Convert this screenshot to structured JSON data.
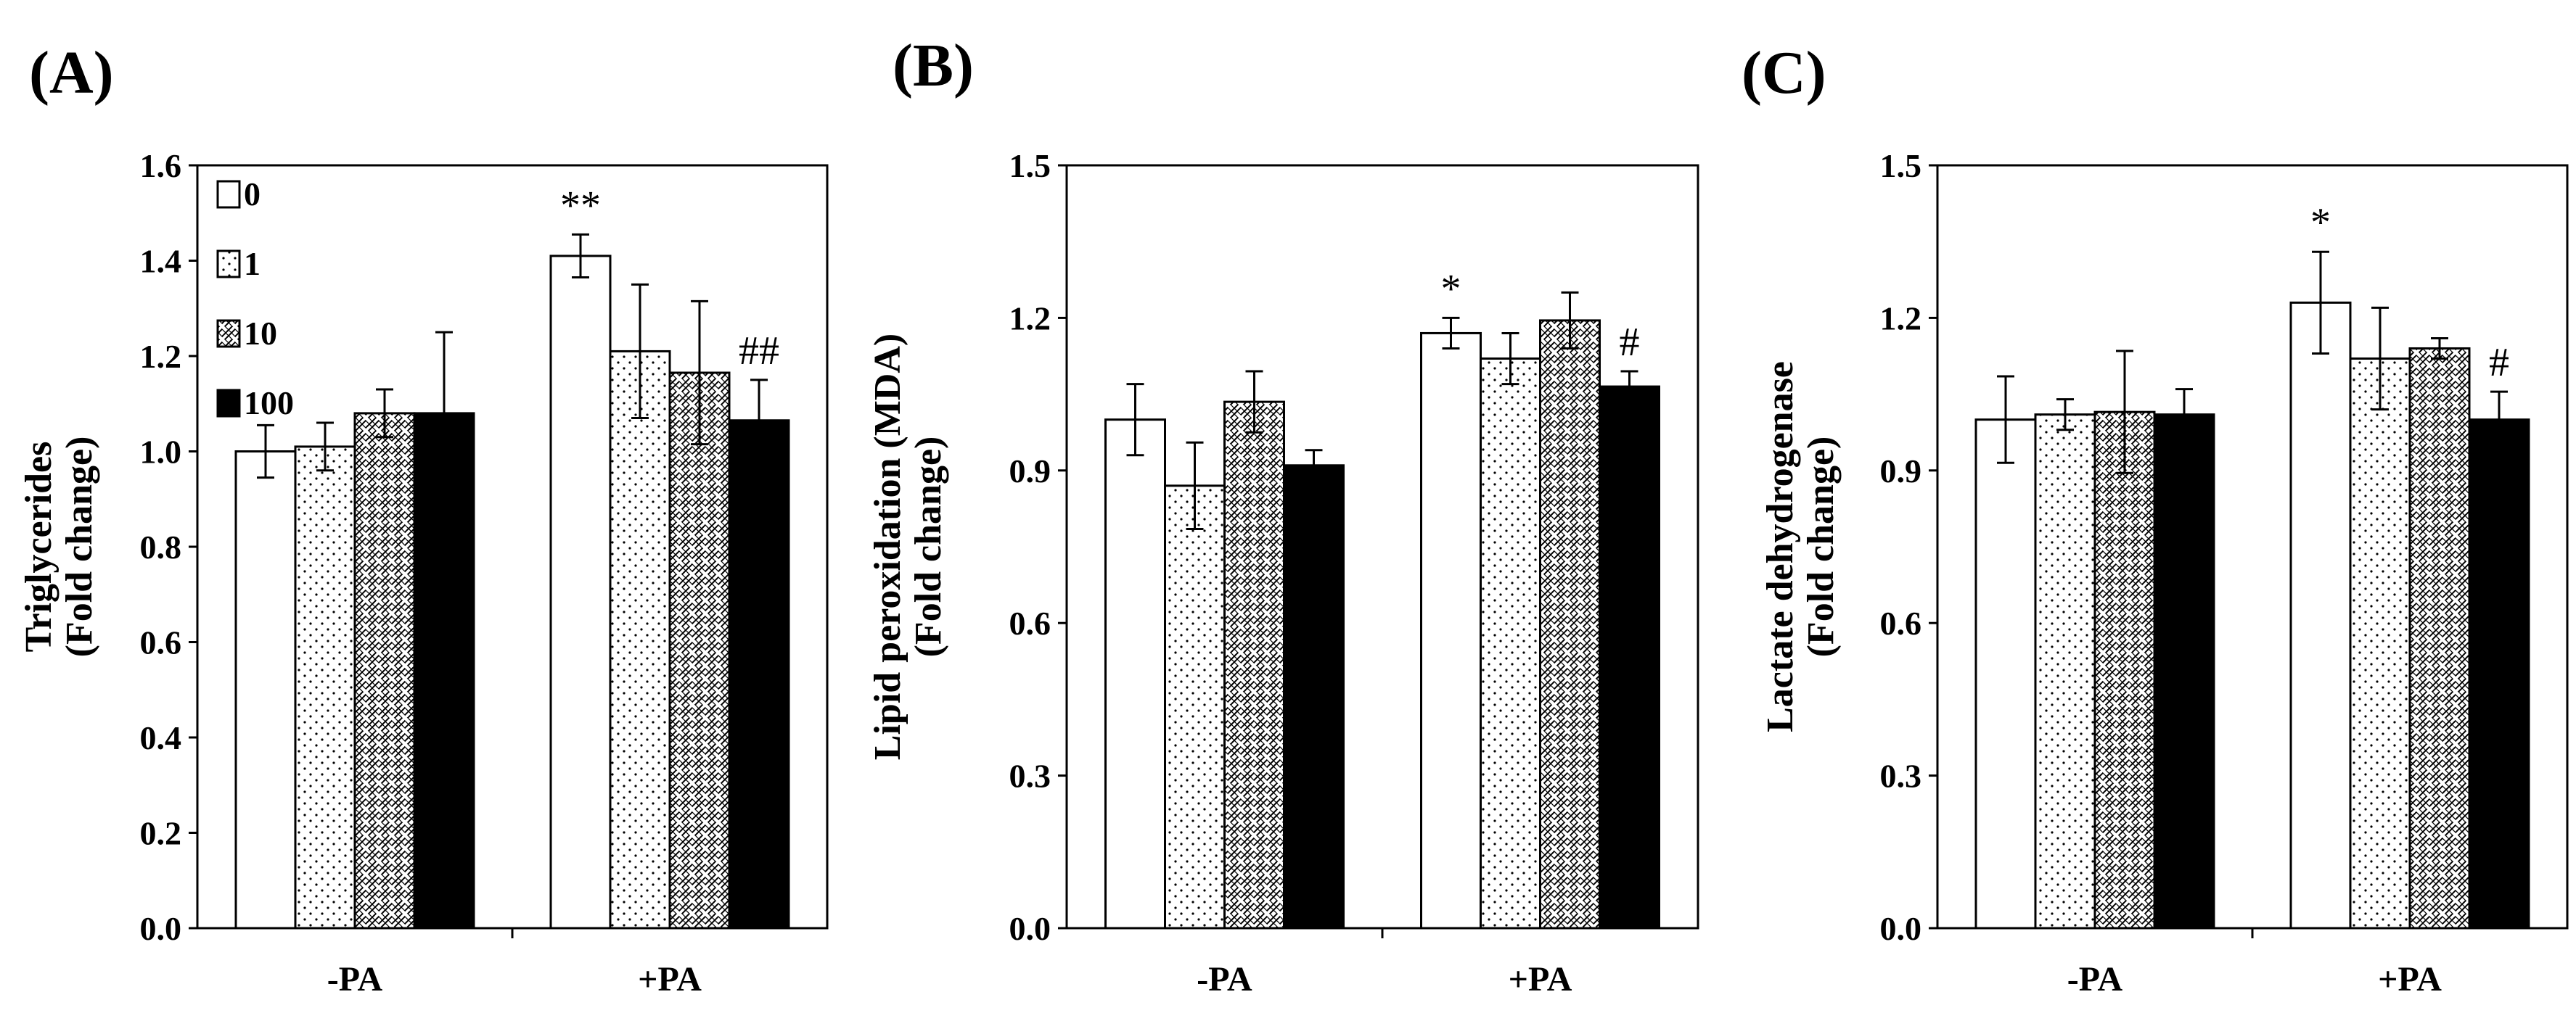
{
  "figure": {
    "series_names": [
      "0",
      "1",
      "10",
      "100"
    ],
    "legend": {
      "placement": "top-left",
      "entries": [
        "0",
        "1",
        "10",
        "100"
      ]
    }
  },
  "chart_data": [
    {
      "type": "bar",
      "panel_label": "(A)",
      "ylabel": [
        "Triglycerides",
        "(Fold change)"
      ],
      "categories": [
        "-PA",
        "+PA"
      ],
      "ylim": [
        0.0,
        1.6
      ],
      "yticks": [
        "0.0",
        "0.2",
        "0.4",
        "0.6",
        "0.8",
        "1.0",
        "1.2",
        "1.4",
        "1.6"
      ],
      "series": [
        {
          "name": "0",
          "values": [
            1.0,
            1.41
          ],
          "errors": [
            0.055,
            0.045
          ]
        },
        {
          "name": "1",
          "values": [
            1.01,
            1.21
          ],
          "errors": [
            0.05,
            0.14
          ]
        },
        {
          "name": "10",
          "values": [
            1.08,
            1.165
          ],
          "errors": [
            0.05,
            0.15
          ]
        },
        {
          "name": "100",
          "values": [
            1.08,
            1.065
          ],
          "errors": [
            0.17,
            0.085
          ]
        }
      ],
      "annotations": [
        {
          "series": 0,
          "category": 1,
          "text": "**"
        },
        {
          "series": 3,
          "category": 1,
          "text": "##"
        }
      ]
    },
    {
      "type": "bar",
      "panel_label": "(B)",
      "ylabel": [
        "Lipid peroxidation (MDA)",
        "(Fold change)"
      ],
      "categories": [
        "-PA",
        "+PA"
      ],
      "ylim": [
        0.0,
        1.5
      ],
      "yticks": [
        "0.0",
        "0.3",
        "0.6",
        "0.9",
        "1.2",
        "1.5"
      ],
      "series": [
        {
          "name": "0",
          "values": [
            1.0,
            1.17
          ],
          "errors": [
            0.07,
            0.03
          ]
        },
        {
          "name": "1",
          "values": [
            0.87,
            1.12
          ],
          "errors": [
            0.085,
            0.05
          ]
        },
        {
          "name": "10",
          "values": [
            1.035,
            1.195
          ],
          "errors": [
            0.06,
            0.055
          ]
        },
        {
          "name": "100",
          "values": [
            0.91,
            1.065
          ],
          "errors": [
            0.03,
            0.03
          ]
        }
      ],
      "annotations": [
        {
          "series": 0,
          "category": 1,
          "text": "*"
        },
        {
          "series": 3,
          "category": 1,
          "text": "#"
        }
      ]
    },
    {
      "type": "bar",
      "panel_label": "(C)",
      "ylabel": [
        "Lactate dehydrogenase",
        "(Fold change)"
      ],
      "categories": [
        "-PA",
        "+PA"
      ],
      "ylim": [
        0.0,
        1.5
      ],
      "yticks": [
        "0.0",
        "0.3",
        "0.6",
        "0.9",
        "1.2",
        "1.5"
      ],
      "series": [
        {
          "name": "0",
          "values": [
            1.0,
            1.23
          ],
          "errors": [
            0.085,
            0.1
          ]
        },
        {
          "name": "1",
          "values": [
            1.01,
            1.12
          ],
          "errors": [
            0.03,
            0.1
          ]
        },
        {
          "name": "10",
          "values": [
            1.015,
            1.14
          ],
          "errors": [
            0.12,
            0.02
          ]
        },
        {
          "name": "100",
          "values": [
            1.01,
            1.0
          ],
          "errors": [
            0.05,
            0.055
          ]
        }
      ],
      "annotations": [
        {
          "series": 0,
          "category": 1,
          "text": "*"
        },
        {
          "series": 3,
          "category": 1,
          "text": "#"
        }
      ]
    }
  ]
}
